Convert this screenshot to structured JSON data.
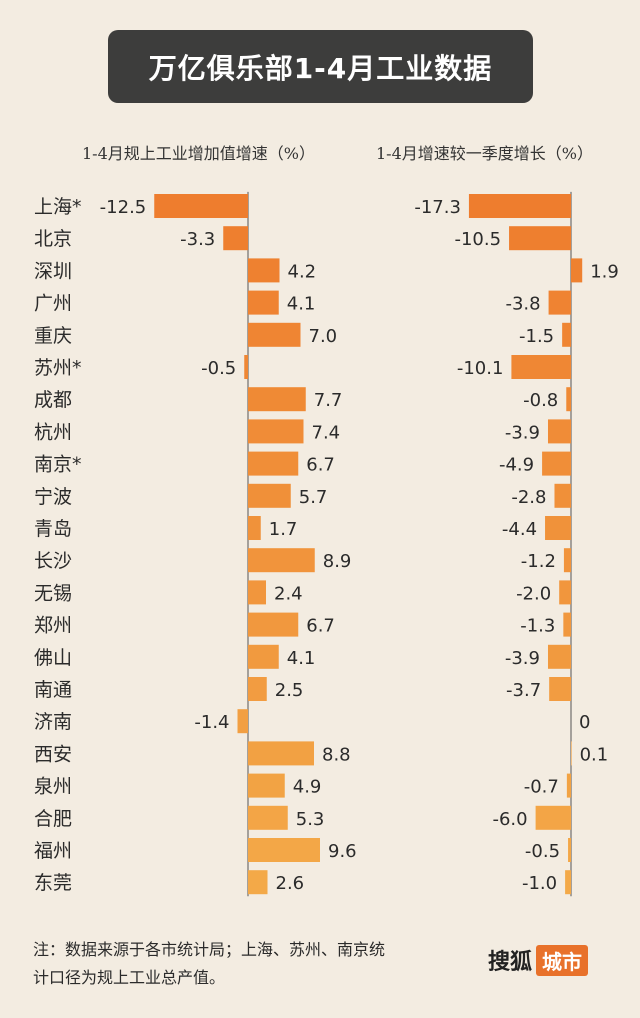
{
  "title": "万亿俱乐部1-4月工业数据",
  "left_subtitle": "1-4月规上工业增加值增速（%）",
  "right_subtitle": "1-4月增速较一季度增长（%）",
  "note": "注：数据来源于各市统计局；上海、苏州、南京统计口径为规上工业总产值。",
  "logo": {
    "main": "搜狐",
    "tag": "城市"
  },
  "colors": {
    "bar_top": "#ee7d2e",
    "bar_bottom": "#f3a948",
    "axis": "#555555",
    "background": "#f3ece1"
  },
  "chart_data": [
    {
      "type": "bar",
      "orientation": "horizontal",
      "title": "1-4月规上工业增加值增速（%）",
      "categories": [
        "上海*",
        "北京",
        "深圳",
        "广州",
        "重庆",
        "苏州*",
        "成都",
        "杭州",
        "南京*",
        "宁波",
        "青岛",
        "长沙",
        "无锡",
        "郑州",
        "佛山",
        "南通",
        "济南",
        "西安",
        "泉州",
        "合肥",
        "福州",
        "东莞"
      ],
      "values": [
        -12.5,
        -3.3,
        4.2,
        4.1,
        7.0,
        -0.5,
        7.7,
        7.4,
        6.7,
        5.7,
        1.7,
        8.9,
        2.4,
        6.7,
        4.1,
        2.5,
        -1.4,
        8.8,
        4.9,
        5.3,
        9.6,
        2.6
      ],
      "labels": [
        "-12.5",
        "-3.3",
        "4.2",
        "4.1",
        "7.0",
        "-0.5",
        "7.7",
        "7.4",
        "6.7",
        "5.7",
        "1.7",
        "8.9",
        "2.4",
        "6.7",
        "4.1",
        "2.5",
        "-1.4",
        "8.8",
        "4.9",
        "5.3",
        "9.6",
        "2.6"
      ]
    },
    {
      "type": "bar",
      "orientation": "horizontal",
      "title": "1-4月增速较一季度增长（%）",
      "categories": [
        "上海*",
        "北京",
        "深圳",
        "广州",
        "重庆",
        "苏州*",
        "成都",
        "杭州",
        "南京*",
        "宁波",
        "青岛",
        "长沙",
        "无锡",
        "郑州",
        "佛山",
        "南通",
        "济南",
        "西安",
        "泉州",
        "合肥",
        "福州",
        "东莞"
      ],
      "values": [
        -17.3,
        -10.5,
        1.9,
        -3.8,
        -1.5,
        -10.1,
        -0.8,
        -3.9,
        -4.9,
        -2.8,
        -4.4,
        -1.2,
        -2.0,
        -1.3,
        -3.9,
        -3.7,
        0,
        0.1,
        -0.7,
        -6.0,
        -0.5,
        -1.0
      ],
      "labels": [
        "-17.3",
        "-10.5",
        "1.9",
        "-3.8",
        "-1.5",
        "-10.1",
        "-0.8",
        "-3.9",
        "-4.9",
        "-2.8",
        "-4.4",
        "-1.2",
        "-2.0",
        "-1.3",
        "-3.9",
        "-3.7",
        "0",
        "0.1",
        "-0.7",
        "-6.0",
        "-0.5",
        "-1.0"
      ]
    }
  ]
}
